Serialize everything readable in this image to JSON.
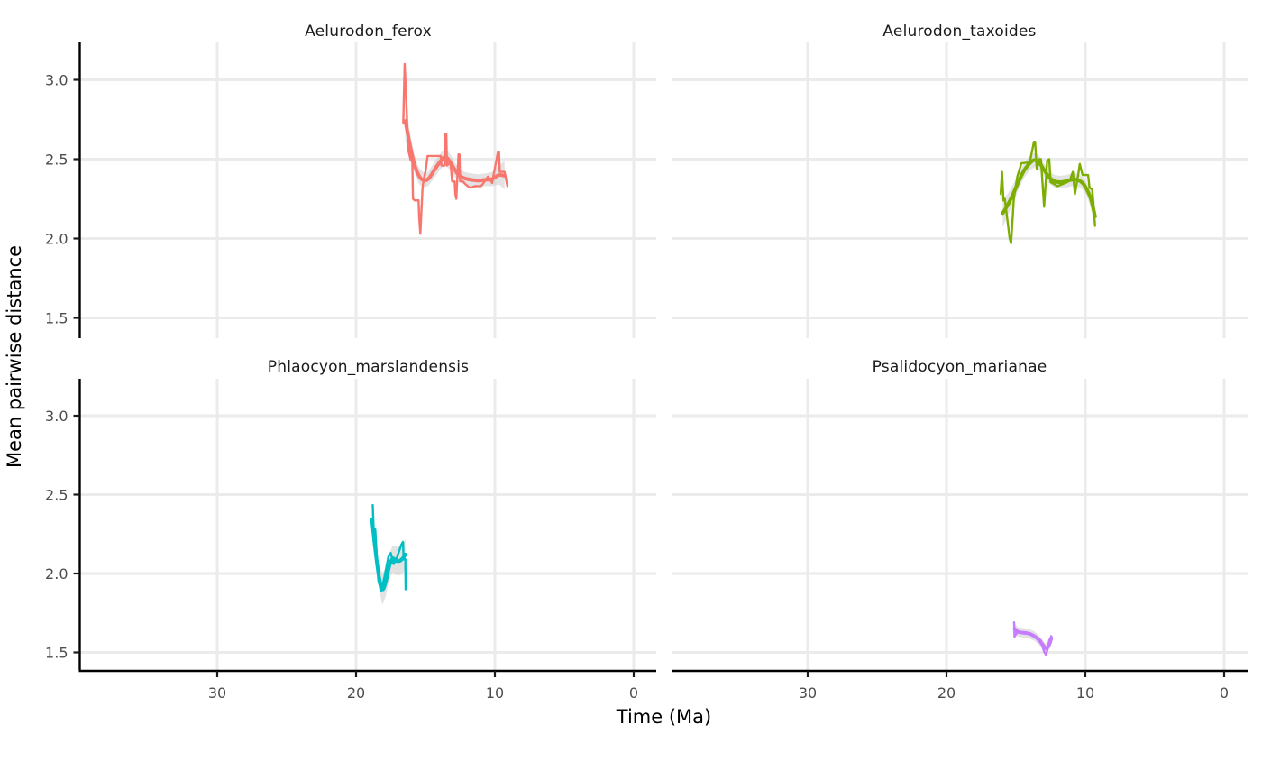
{
  "chart_data": {
    "type": "line",
    "title": "",
    "xlabel": "Time (Ma)",
    "ylabel": "Mean pairwise distance",
    "x_axis": {
      "reversed": true,
      "range_ma": [
        39.9,
        -1.65
      ],
      "ticks": [
        {
          "v": 30,
          "label": "30"
        },
        {
          "v": 20,
          "label": "20"
        },
        {
          "v": 10,
          "label": "10"
        },
        {
          "v": 0,
          "label": "0"
        }
      ]
    },
    "y_axis": {
      "range": [
        1.37,
        3.23
      ],
      "ticks": [
        {
          "v": 3.0,
          "label": "3.0"
        },
        {
          "v": 2.5,
          "label": "2.5"
        },
        {
          "v": 2.0,
          "label": "2.0"
        },
        {
          "v": 1.5,
          "label": "1.5"
        }
      ]
    },
    "grid": true,
    "legend": "none",
    "colors": {
      "grid": "#ebebeb",
      "axis_line": "#000000",
      "tick_mark": "#1a1a1a",
      "tick_text": "#4d4d4d",
      "title_text": "#1a1a1a",
      "band": "#c8c8c8"
    },
    "facets": [
      {
        "title": "Aelurodon_ferox",
        "color": "#F8766D",
        "raw": [
          [
            16.6,
            2.73
          ],
          [
            16.5,
            3.1
          ],
          [
            16.35,
            2.8
          ],
          [
            16.25,
            2.56
          ],
          [
            16.05,
            2.49
          ],
          [
            15.95,
            2.49
          ],
          [
            15.9,
            2.25
          ],
          [
            15.78,
            2.24
          ],
          [
            15.5,
            2.24
          ],
          [
            15.45,
            2.13
          ],
          [
            15.37,
            2.03
          ],
          [
            15.21,
            2.32
          ],
          [
            15.13,
            2.37
          ],
          [
            14.98,
            2.43
          ],
          [
            14.85,
            2.52
          ],
          [
            13.9,
            2.52
          ],
          [
            13.85,
            2.46
          ],
          [
            13.62,
            2.46
          ],
          [
            13.57,
            2.66
          ],
          [
            13.5,
            2.66
          ],
          [
            13.45,
            2.46
          ],
          [
            13.2,
            2.48
          ],
          [
            13.08,
            2.36
          ],
          [
            12.9,
            2.36
          ],
          [
            12.85,
            2.28
          ],
          [
            12.78,
            2.25
          ],
          [
            12.62,
            2.53
          ],
          [
            12.55,
            2.53
          ],
          [
            12.5,
            2.36
          ],
          [
            12.3,
            2.36
          ],
          [
            12.1,
            2.34
          ],
          [
            11.8,
            2.32
          ],
          [
            11.4,
            2.33
          ],
          [
            11.0,
            2.33
          ],
          [
            10.9,
            2.34
          ],
          [
            10.5,
            2.39
          ],
          [
            10.2,
            2.35
          ],
          [
            9.78,
            2.545
          ],
          [
            9.7,
            2.545
          ],
          [
            9.65,
            2.42
          ],
          [
            9.3,
            2.42
          ],
          [
            9.1,
            2.33
          ]
        ],
        "smooth": [
          [
            16.45,
            2.74
          ],
          [
            16.1,
            2.58
          ],
          [
            15.8,
            2.47
          ],
          [
            15.5,
            2.4
          ],
          [
            15.2,
            2.37
          ],
          [
            14.8,
            2.375
          ],
          [
            14.3,
            2.44
          ],
          [
            13.9,
            2.49
          ],
          [
            13.55,
            2.515
          ],
          [
            13.2,
            2.48
          ],
          [
            12.9,
            2.435
          ],
          [
            12.6,
            2.4
          ],
          [
            12.2,
            2.38
          ],
          [
            11.7,
            2.37
          ],
          [
            11.2,
            2.365
          ],
          [
            10.7,
            2.37
          ],
          [
            10.2,
            2.375
          ],
          [
            9.7,
            2.4
          ],
          [
            9.3,
            2.395
          ]
        ],
        "band": [
          [
            16.45,
            2.62,
            2.87
          ],
          [
            16.1,
            2.5,
            2.66
          ],
          [
            15.8,
            2.42,
            2.53
          ],
          [
            15.5,
            2.35,
            2.45
          ],
          [
            15.2,
            2.32,
            2.42
          ],
          [
            14.8,
            2.33,
            2.42
          ],
          [
            14.3,
            2.39,
            2.49
          ],
          [
            13.9,
            2.44,
            2.54
          ],
          [
            13.55,
            2.46,
            2.57
          ],
          [
            13.2,
            2.43,
            2.53
          ],
          [
            12.9,
            2.39,
            2.48
          ],
          [
            12.6,
            2.355,
            2.445
          ],
          [
            12.2,
            2.34,
            2.42
          ],
          [
            11.7,
            2.33,
            2.41
          ],
          [
            11.2,
            2.325,
            2.405
          ],
          [
            10.7,
            2.33,
            2.41
          ],
          [
            10.2,
            2.33,
            2.42
          ],
          [
            9.7,
            2.34,
            2.46
          ],
          [
            9.3,
            2.31,
            2.49
          ]
        ]
      },
      {
        "title": "Aelurodon_taxoides",
        "color": "#7CAE00",
        "raw": [
          [
            16.1,
            2.28
          ],
          [
            16.0,
            2.42
          ],
          [
            15.9,
            2.24
          ],
          [
            15.8,
            2.25
          ],
          [
            15.45,
            2.0
          ],
          [
            15.35,
            1.97
          ],
          [
            15.15,
            2.25
          ],
          [
            14.9,
            2.39
          ],
          [
            14.6,
            2.475
          ],
          [
            14.0,
            2.48
          ],
          [
            13.7,
            2.61
          ],
          [
            13.62,
            2.61
          ],
          [
            13.5,
            2.44
          ],
          [
            13.3,
            2.5
          ],
          [
            13.2,
            2.5
          ],
          [
            12.97,
            2.2
          ],
          [
            12.75,
            2.49
          ],
          [
            12.6,
            2.5
          ],
          [
            12.5,
            2.355
          ],
          [
            12.0,
            2.33
          ],
          [
            11.3,
            2.355
          ],
          [
            11.1,
            2.37
          ],
          [
            10.9,
            2.42
          ],
          [
            10.75,
            2.28
          ],
          [
            10.5,
            2.41
          ],
          [
            10.4,
            2.47
          ],
          [
            10.2,
            2.4
          ],
          [
            9.8,
            2.4
          ],
          [
            9.7,
            2.32
          ],
          [
            9.5,
            2.31
          ],
          [
            9.3,
            2.08
          ]
        ],
        "smooth": [
          [
            15.95,
            2.16
          ],
          [
            15.6,
            2.21
          ],
          [
            15.2,
            2.28
          ],
          [
            14.8,
            2.36
          ],
          [
            14.4,
            2.43
          ],
          [
            14.0,
            2.475
          ],
          [
            13.65,
            2.495
          ],
          [
            13.3,
            2.475
          ],
          [
            12.95,
            2.43
          ],
          [
            12.6,
            2.385
          ],
          [
            12.2,
            2.36
          ],
          [
            11.8,
            2.355
          ],
          [
            11.4,
            2.36
          ],
          [
            11.0,
            2.37
          ],
          [
            10.6,
            2.37
          ],
          [
            10.2,
            2.35
          ],
          [
            9.9,
            2.31
          ],
          [
            9.6,
            2.25
          ],
          [
            9.3,
            2.14
          ]
        ],
        "band": [
          [
            15.95,
            2.07,
            2.25
          ],
          [
            15.6,
            2.14,
            2.28
          ],
          [
            15.2,
            2.22,
            2.34
          ],
          [
            14.8,
            2.31,
            2.41
          ],
          [
            14.4,
            2.385,
            2.475
          ],
          [
            14.0,
            2.43,
            2.52
          ],
          [
            13.65,
            2.45,
            2.54
          ],
          [
            13.3,
            2.43,
            2.52
          ],
          [
            12.95,
            2.39,
            2.47
          ],
          [
            12.6,
            2.345,
            2.425
          ],
          [
            12.2,
            2.32,
            2.4
          ],
          [
            11.8,
            2.315,
            2.395
          ],
          [
            11.4,
            2.32,
            2.4
          ],
          [
            11.0,
            2.33,
            2.41
          ],
          [
            10.6,
            2.33,
            2.41
          ],
          [
            10.2,
            2.31,
            2.39
          ],
          [
            9.9,
            2.27,
            2.35
          ],
          [
            9.6,
            2.19,
            2.31
          ],
          [
            9.3,
            2.05,
            2.23
          ]
        ]
      },
      {
        "title": "Phlaocyon_marslandensis",
        "color": "#00BFC4",
        "raw": [
          [
            18.8,
            2.434
          ],
          [
            18.72,
            2.25
          ],
          [
            18.62,
            2.28
          ],
          [
            18.4,
            1.96
          ],
          [
            18.2,
            1.89
          ],
          [
            17.95,
            1.98
          ],
          [
            17.66,
            2.11
          ],
          [
            17.5,
            2.13
          ],
          [
            17.3,
            2.06
          ],
          [
            17.1,
            2.09
          ],
          [
            16.75,
            2.18
          ],
          [
            16.62,
            2.2
          ],
          [
            16.57,
            2.09
          ],
          [
            16.45,
            2.09
          ],
          [
            16.43,
            1.9
          ]
        ],
        "smooth": [
          [
            18.85,
            2.34
          ],
          [
            18.6,
            2.14
          ],
          [
            18.35,
            1.98
          ],
          [
            18.1,
            1.9
          ],
          [
            17.85,
            1.95
          ],
          [
            17.6,
            2.05
          ],
          [
            17.35,
            2.095
          ],
          [
            17.1,
            2.08
          ],
          [
            16.85,
            2.08
          ],
          [
            16.6,
            2.1
          ],
          [
            16.45,
            2.12
          ]
        ],
        "band": [
          [
            18.85,
            2.26,
            2.42
          ],
          [
            18.6,
            2.06,
            2.22
          ],
          [
            18.35,
            1.9,
            2.06
          ],
          [
            18.1,
            1.8,
            2.0
          ],
          [
            17.85,
            1.86,
            2.04
          ],
          [
            17.6,
            1.97,
            2.13
          ],
          [
            17.35,
            2.01,
            2.18
          ],
          [
            17.1,
            1.99,
            2.17
          ],
          [
            16.85,
            1.99,
            2.17
          ],
          [
            16.6,
            2.01,
            2.19
          ],
          [
            16.45,
            2.02,
            2.22
          ]
        ]
      },
      {
        "title": "Psalidocyon_marianae",
        "color": "#C77CFF",
        "raw": [
          [
            15.13,
            1.69
          ],
          [
            15.1,
            1.6
          ],
          [
            14.85,
            1.635
          ],
          [
            14.5,
            1.625
          ],
          [
            13.85,
            1.615
          ],
          [
            13.5,
            1.595
          ],
          [
            13.2,
            1.575
          ],
          [
            12.97,
            1.505
          ],
          [
            12.82,
            1.482
          ],
          [
            12.6,
            1.575
          ],
          [
            12.45,
            1.603
          ]
        ],
        "smooth": [
          [
            15.1,
            1.65
          ],
          [
            14.85,
            1.63
          ],
          [
            14.5,
            1.625
          ],
          [
            14.1,
            1.62
          ],
          [
            13.7,
            1.605
          ],
          [
            13.3,
            1.575
          ],
          [
            13.0,
            1.54
          ],
          [
            12.8,
            1.525
          ],
          [
            12.6,
            1.55
          ],
          [
            12.45,
            1.59
          ]
        ],
        "band": [
          [
            15.1,
            1.615,
            1.685
          ],
          [
            14.85,
            1.6,
            1.66
          ],
          [
            14.5,
            1.595,
            1.655
          ],
          [
            14.1,
            1.59,
            1.65
          ],
          [
            13.7,
            1.575,
            1.635
          ],
          [
            13.3,
            1.545,
            1.605
          ],
          [
            13.0,
            1.51,
            1.57
          ],
          [
            12.8,
            1.495,
            1.555
          ],
          [
            12.6,
            1.52,
            1.58
          ],
          [
            12.45,
            1.555,
            1.625
          ]
        ]
      }
    ]
  }
}
